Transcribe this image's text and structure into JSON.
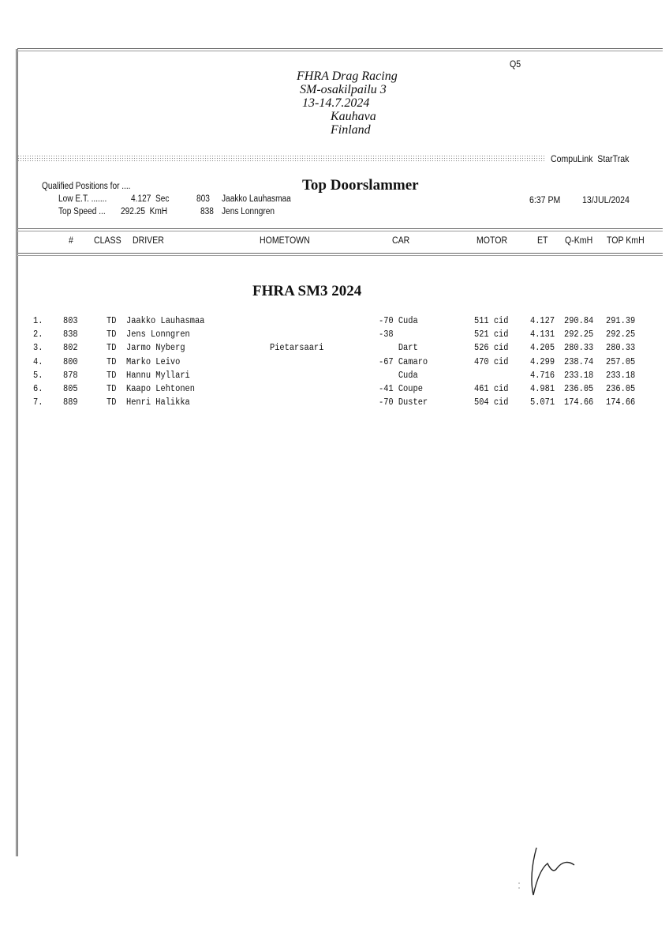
{
  "header": {
    "page_code": "Q5",
    "event_lines": [
      "FHRA Drag Racing",
      "SM-osakilpailu 3",
      "13-14.7.2024",
      "Kauhava",
      "Finland"
    ],
    "system": "CompuLink  StarTrak"
  },
  "summary": {
    "qualified_label": "Qualified Positions for ....",
    "class_title": "Top Doorslammer",
    "low_et_label": "Low E.T. .......",
    "low_et_value": "4.127  Sec",
    "low_et_number": "803",
    "low_et_driver": "Jaakko Lauhasmaa",
    "top_speed_label": "Top Speed ...",
    "top_speed_value": "292.25  KmH",
    "top_speed_number": "838",
    "top_speed_driver": "Jens Lonngren",
    "time": "6:37 PM",
    "date": "13/JUL/2024"
  },
  "columns": [
    "#",
    "CLASS",
    "DRIVER",
    "HOMETOWN",
    "CAR",
    "MOTOR",
    "ET",
    "Q-KmH",
    "TOP KmH"
  ],
  "section_title": "FHRA SM3 2024",
  "rows": [
    {
      "pos": "1.",
      "num": "803",
      "cls": "TD",
      "driver": "Jaakko Lauhasmaa",
      "hometown": "",
      "car": "-70 Cuda",
      "motor": "511 cid",
      "et": "4.127",
      "q": "290.84",
      "top": "291.39"
    },
    {
      "pos": "2.",
      "num": "838",
      "cls": "TD",
      "driver": "Jens Lonngren",
      "hometown": "",
      "car": "-38",
      "motor": "521 cid",
      "et": "4.131",
      "q": "292.25",
      "top": "292.25"
    },
    {
      "pos": "3.",
      "num": "802",
      "cls": "TD",
      "driver": "Jarmo Nyberg",
      "hometown": "Pietarsaari",
      "car": "    Dart",
      "motor": "526 cid",
      "et": "4.205",
      "q": "280.33",
      "top": "280.33"
    },
    {
      "pos": "4.",
      "num": "800",
      "cls": "TD",
      "driver": "Marko Leivo",
      "hometown": "",
      "car": "-67 Camaro",
      "motor": "470 cid",
      "et": "4.299",
      "q": "238.74",
      "top": "257.05"
    },
    {
      "pos": "5.",
      "num": "878",
      "cls": "TD",
      "driver": "Hannu Myllari",
      "hometown": "",
      "car": "    Cuda",
      "motor": "",
      "et": "4.716",
      "q": "233.18",
      "top": "233.18"
    },
    {
      "pos": "6.",
      "num": "805",
      "cls": "TD",
      "driver": "Kaapo Lehtonen",
      "hometown": "",
      "car": "-41 Coupe",
      "motor": "461 cid",
      "et": "4.981",
      "q": "236.05",
      "top": "236.05"
    },
    {
      "pos": "7.",
      "num": "889",
      "cls": "TD",
      "driver": "Henri Halikka",
      "hometown": "",
      "car": "-70 Duster",
      "motor": "504 cid",
      "et": "5.071",
      "q": "174.66",
      "top": "174.66"
    }
  ]
}
